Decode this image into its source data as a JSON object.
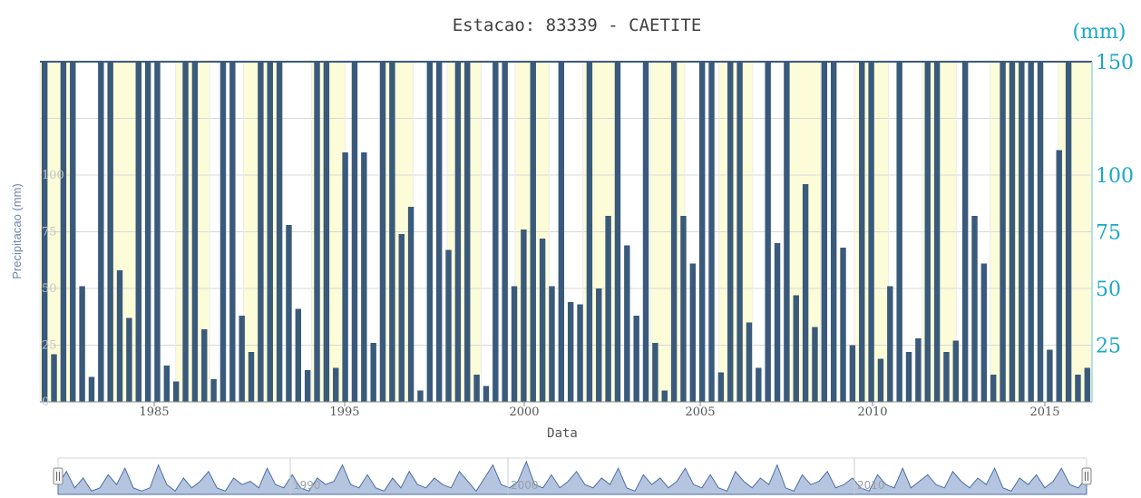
{
  "chart_data": {
    "type": "bar",
    "title": "Estacao: 83339 - CAETITE",
    "xlabel": "Data",
    "ylabel": "Precipitacao (mm)",
    "right_axis_unit": "(mm)",
    "ylim": [
      0,
      150
    ],
    "yticks_left": [
      "0",
      "25",
      "50",
      "75",
      "100"
    ],
    "yticks_right": [
      "25",
      "50",
      "75",
      "100",
      "150"
    ],
    "xticks": [
      "1985",
      "1995",
      "2000",
      "2005",
      "2010",
      "2015"
    ],
    "navigator_ticks": [
      "1990",
      "2000",
      "2010"
    ],
    "grid": true,
    "colors": {
      "bar": "#3a5a7c",
      "band": "#fcfcd8",
      "right_axis": "#1aa8c8",
      "navigator": "#9cb2d6"
    },
    "series": [
      {
        "values": [
          150,
          21,
          150,
          150,
          51,
          11,
          150,
          150,
          58,
          37,
          150,
          150,
          150,
          16,
          9,
          150,
          150,
          32,
          10,
          150,
          150,
          38,
          22,
          150,
          150,
          150,
          78,
          41,
          14,
          150,
          150,
          15,
          110,
          150,
          110,
          26,
          150,
          150,
          74,
          86,
          5,
          150,
          150,
          67,
          150,
          150,
          12,
          7,
          150,
          150,
          51,
          76,
          150,
          72,
          51,
          150,
          44,
          43,
          150,
          50,
          82,
          150,
          69,
          38,
          150,
          26,
          5,
          150,
          82,
          61,
          150,
          150,
          13,
          150,
          150,
          35,
          15,
          150,
          70,
          150,
          47,
          96,
          33,
          150,
          150,
          68,
          25,
          150,
          150,
          19,
          51,
          150,
          22,
          28,
          150,
          150,
          22,
          27,
          150,
          82,
          61,
          12,
          150,
          150,
          150,
          150,
          150,
          23,
          111,
          150,
          12,
          15
        ]
      }
    ],
    "navigator_values": [
      0.3,
      0.7,
      0.2,
      0.5,
      0.1,
      0.2,
      0.6,
      0.3,
      0.8,
      0.2,
      0.1,
      0.2,
      0.9,
      0.3,
      0.1,
      0.5,
      0.2,
      0.4,
      0.7,
      0.2,
      0.1,
      0.5,
      0.3,
      0.4,
      0.2,
      0.8,
      0.3,
      0.2,
      0.6,
      0.2,
      0.1,
      0.5,
      0.3,
      0.4,
      0.9,
      0.3,
      0.2,
      0.6,
      0.2,
      0.1,
      0.5,
      0.2,
      0.7,
      0.3,
      0.2,
      0.5,
      0.3,
      0.2,
      0.7,
      0.4,
      0.1,
      0.5,
      0.9,
      0.3,
      0.2,
      0.4,
      1.0,
      0.3,
      0.2,
      0.6,
      0.2,
      0.4,
      0.7,
      0.3,
      0.2,
      0.5,
      0.3,
      0.8,
      0.2,
      0.1,
      0.6,
      0.3,
      0.5,
      0.2,
      0.4,
      0.8,
      0.3,
      0.2,
      0.6,
      0.2,
      0.1,
      0.7,
      0.4,
      0.2,
      0.5,
      0.3,
      0.9,
      0.2,
      0.1,
      0.6,
      0.3,
      0.4,
      0.7,
      0.2,
      0.3,
      0.5,
      0.2,
      0.1,
      0.6,
      0.3,
      0.2,
      0.8,
      0.2,
      0.4,
      0.6,
      0.3,
      0.2,
      0.7,
      0.4,
      0.2,
      0.5,
      0.3,
      0.8,
      0.2,
      0.1,
      0.5,
      0.3,
      0.6,
      0.2,
      0.4,
      0.8,
      0.3,
      0.2,
      0.5
    ]
  }
}
